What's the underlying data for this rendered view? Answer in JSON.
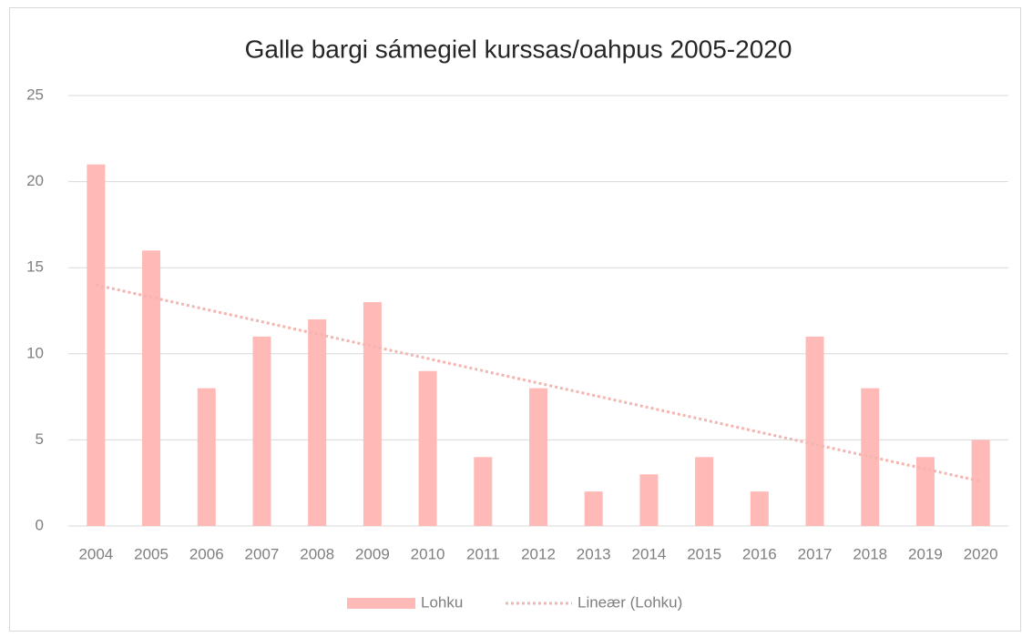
{
  "chart_data": {
    "type": "bar",
    "title": "Galle bargi sámegiel kurssas/oahpus 2005-2020",
    "categories": [
      "2004",
      "2005",
      "2006",
      "2007",
      "2008",
      "2009",
      "2010",
      "2011",
      "2012",
      "2013",
      "2014",
      "2015",
      "2016",
      "2017",
      "2018",
      "2019",
      "2020"
    ],
    "series": [
      {
        "name": "Lohku",
        "color": "#ffb9b6",
        "values": [
          21,
          16,
          8,
          11,
          12,
          13,
          9,
          4,
          8,
          2,
          3,
          4,
          2,
          11,
          8,
          4,
          5
        ]
      }
    ],
    "trendline": {
      "name": "Lineær (Lohku)",
      "color": "#f4b4b0",
      "values": [
        14.0,
        2.6
      ]
    },
    "ylim": [
      0,
      25
    ],
    "yticks": [
      0,
      5,
      10,
      15,
      20,
      25
    ],
    "grid": true,
    "legend": "bottom"
  }
}
